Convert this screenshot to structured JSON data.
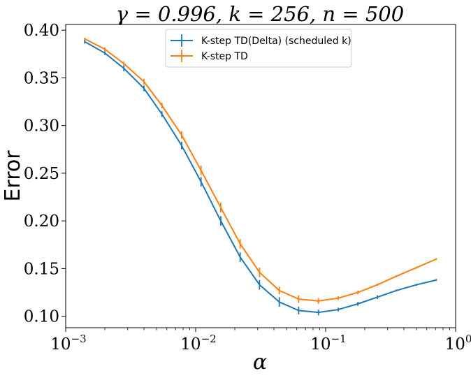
{
  "chart_data": {
    "type": "line",
    "title": "γ = 0.996, k = 256, n = 500",
    "xlabel": "α",
    "ylabel": "Error",
    "xscale": "log",
    "xlim": [
      0.001,
      1
    ],
    "ylim": [
      0.088,
      0.406
    ],
    "grid": false,
    "legend_position": "top-center",
    "x_ticks": [
      {
        "value": 0.001,
        "base": "10",
        "exp": "−3"
      },
      {
        "value": 0.01,
        "base": "10",
        "exp": "−2"
      },
      {
        "value": 0.1,
        "base": "10",
        "exp": "−1"
      },
      {
        "value": 1,
        "base": "10",
        "exp": "0"
      }
    ],
    "y_ticks": [
      {
        "value": 0.1,
        "label": "0.10"
      },
      {
        "value": 0.15,
        "label": "0.15"
      },
      {
        "value": 0.2,
        "label": "0.20"
      },
      {
        "value": 0.25,
        "label": "0.25"
      },
      {
        "value": 0.3,
        "label": "0.30"
      },
      {
        "value": 0.35,
        "label": "0.35"
      },
      {
        "value": 0.4,
        "label": "0.40"
      }
    ],
    "x": [
      0.0014,
      0.002,
      0.0028,
      0.004,
      0.0055,
      0.0078,
      0.011,
      0.0156,
      0.022,
      0.031,
      0.044,
      0.062,
      0.088,
      0.125,
      0.177,
      0.25,
      0.35,
      0.5,
      0.71
    ],
    "series": [
      {
        "name": "K-step TD(Delta) (scheduled k)",
        "color": "#1f77b4",
        "values": [
          0.388,
          0.376,
          0.36,
          0.339,
          0.312,
          0.279,
          0.241,
          0.2,
          0.162,
          0.133,
          0.115,
          0.106,
          0.104,
          0.107,
          0.113,
          0.12,
          0.127,
          0.133,
          0.138
        ],
        "errors": [
          0.002,
          0.002,
          0.003,
          0.003,
          0.003,
          0.004,
          0.005,
          0.005,
          0.005,
          0.005,
          0.005,
          0.004,
          0.003,
          0.002,
          0.002,
          0.002,
          0.001,
          0.001,
          0.001
        ]
      },
      {
        "name": "K-step TD",
        "color": "#ff7f0e",
        "values": [
          0.391,
          0.38,
          0.365,
          0.346,
          0.321,
          0.29,
          0.253,
          0.214,
          0.176,
          0.146,
          0.127,
          0.118,
          0.116,
          0.119,
          0.125,
          0.133,
          0.142,
          0.151,
          0.16
        ],
        "errors": [
          0.001,
          0.002,
          0.002,
          0.003,
          0.003,
          0.004,
          0.005,
          0.005,
          0.005,
          0.005,
          0.004,
          0.004,
          0.003,
          0.002,
          0.002,
          0.001,
          0.001,
          0.001,
          0.001
        ]
      }
    ]
  }
}
